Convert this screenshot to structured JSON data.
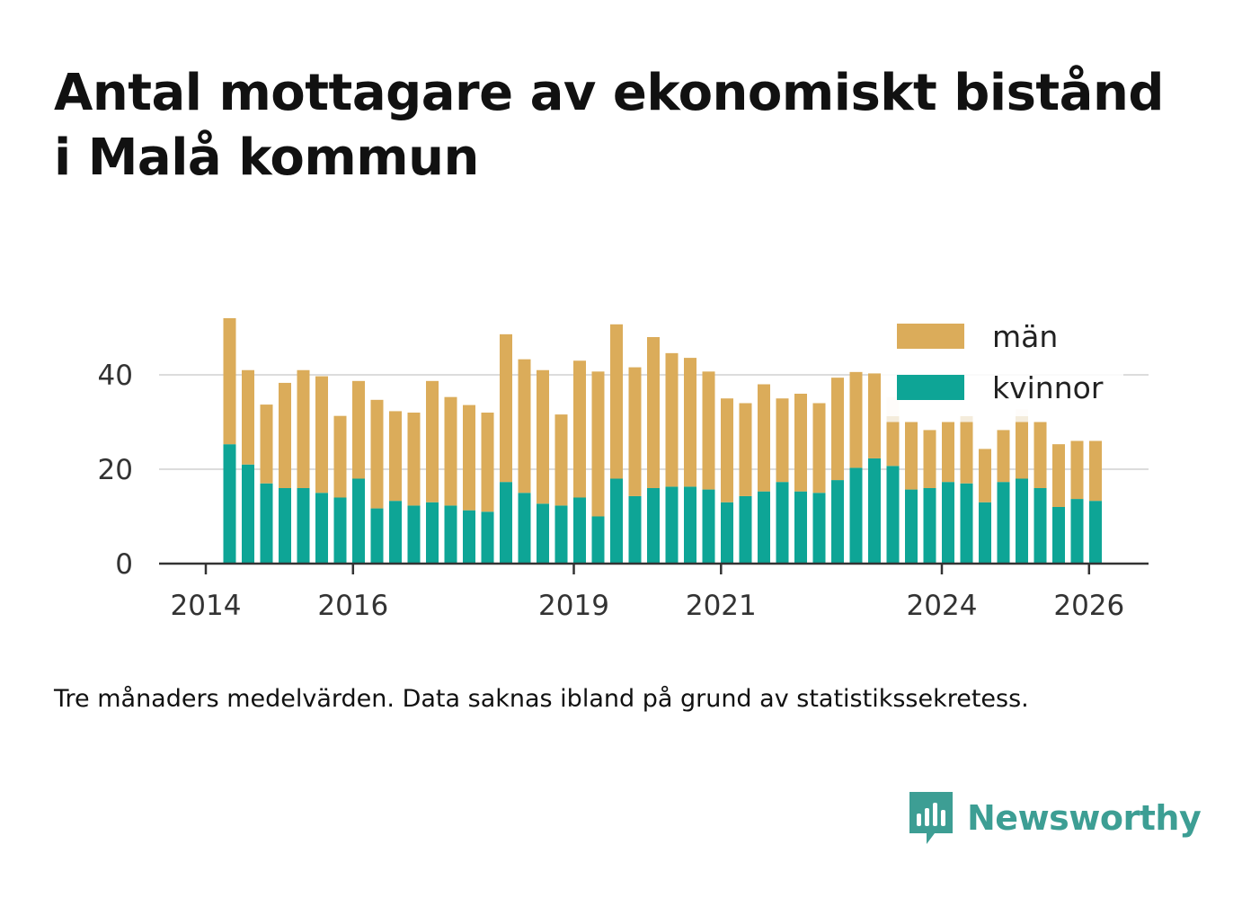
{
  "header": {
    "title_line1": "Antal mottagare av ekonomiskt bistånd",
    "title_line2": "i Malå kommun"
  },
  "caption": "Tre månaders medelvärden. Data saknas ibland på grund av statistikssekretess.",
  "brand": {
    "name": "Newsworthy",
    "icon": "newsworthy-logo-icon",
    "color": "#3d9e94"
  },
  "chart_data": {
    "type": "bar",
    "stacked": true,
    "title": "Antal mottagare av ekonomiskt bistånd i Malå kommun",
    "xlabel": "",
    "ylabel": "",
    "ylim": [
      0,
      52
    ],
    "grid": true,
    "y_ticks": [
      "0",
      "20",
      "40"
    ],
    "x_ticks": [
      "2014",
      "2016",
      "2019",
      "2021",
      "2024",
      "2026"
    ],
    "legend_position": "top-right",
    "colors": {
      "män": "#dbac5a",
      "kvinnor": "#0ea596",
      "missing": "#f4ecdc"
    },
    "categories": [
      "2014-06",
      "2014-09",
      "2014-12",
      "2015-03",
      "2015-06",
      "2015-09",
      "2015-12",
      "2016-03",
      "2016-06",
      "2016-09",
      "2016-12",
      "2017-03",
      "2017-06",
      "2017-09",
      "2017-12",
      "2018-03",
      "2018-06",
      "2018-09",
      "2018-12",
      "2019-03",
      "2019-06",
      "2019-09",
      "2019-12",
      "2020-03",
      "2020-06",
      "2020-09",
      "2020-12",
      "2021-03",
      "2021-06",
      "2021-09",
      "2021-12",
      "2022-03",
      "2022-06",
      "2022-09",
      "2022-12",
      "2023-03",
      "2023-06",
      "2023-09",
      "2023-12",
      "2024-03",
      "2024-06",
      "2024-09",
      "2024-12",
      "2025-03",
      "2025-06",
      "2025-09",
      "2025-12",
      "2026-03"
    ],
    "series": [
      {
        "name": "kvinnor",
        "values": [
          25.3,
          21.0,
          17.0,
          16.0,
          16.0,
          15.0,
          14.0,
          18.0,
          11.7,
          13.3,
          12.3,
          13.0,
          12.3,
          11.3,
          11.0,
          17.3,
          15.0,
          12.7,
          12.3,
          14.0,
          10.0,
          18.0,
          14.3,
          16.0,
          16.3,
          16.3,
          15.7,
          13.0,
          14.3,
          15.3,
          17.3,
          15.3,
          15.0,
          17.7,
          20.3,
          22.3,
          20.7,
          15.7,
          16.0,
          17.3,
          17.0,
          13.0,
          17.3,
          18.0,
          16.0,
          12.0,
          13.7,
          13.3
        ]
      },
      {
        "name": "män",
        "values": [
          26.7,
          20.0,
          16.7,
          22.3,
          25.0,
          24.7,
          17.3,
          20.7,
          23.0,
          19.0,
          19.7,
          25.7,
          23.0,
          22.3,
          21.0,
          31.3,
          28.3,
          28.3,
          19.3,
          29.0,
          30.7,
          32.7,
          27.3,
          32.0,
          28.3,
          27.3,
          25.0,
          22.0,
          19.7,
          22.7,
          17.7,
          20.7,
          19.0,
          21.7,
          20.3,
          18.0,
          9.3,
          14.3,
          12.3,
          12.7,
          13.0,
          11.3,
          11.0,
          12.0,
          14.0,
          13.3,
          12.3,
          12.7
        ]
      },
      {
        "name": "missing",
        "values": [
          0,
          0,
          0,
          0,
          0,
          0,
          0,
          0,
          0,
          0,
          0,
          0,
          0,
          0,
          0,
          0,
          0,
          0,
          0,
          0,
          0,
          0,
          0,
          0,
          0,
          0,
          0,
          0,
          0,
          0,
          0,
          0,
          0,
          0,
          0,
          0,
          5.3,
          0,
          0,
          0,
          1.3,
          0,
          0,
          2.7,
          0,
          0,
          0,
          0
        ]
      }
    ]
  }
}
